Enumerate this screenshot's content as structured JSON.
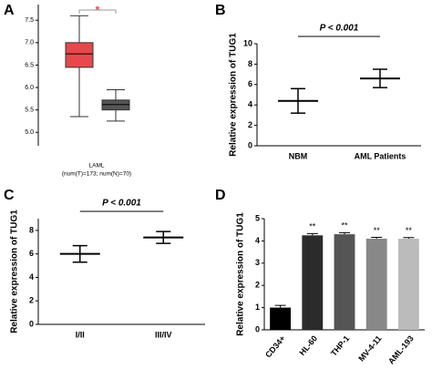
{
  "chart_data": [
    {
      "panel": "A",
      "type": "box",
      "ylim": [
        4.7,
        7.85
      ],
      "yticks": [
        {
          "value": 5,
          "label": "5.0"
        },
        {
          "value": 5.5,
          "label": "5.5"
        },
        {
          "value": 6,
          "label": "6.0"
        },
        {
          "value": 6.5,
          "label": "6.5"
        },
        {
          "value": 7,
          "label": "7.0"
        },
        {
          "value": 7.5,
          "label": "7.5"
        }
      ],
      "boxes": [
        {
          "color": "#e8474c",
          "median": 6.75,
          "q1": 6.45,
          "q3": 7.0,
          "low": 5.35,
          "high": 7.6
        },
        {
          "color": "#555555",
          "median": 5.62,
          "q1": 5.5,
          "q3": 5.72,
          "low": 5.25,
          "high": 5.95
        }
      ],
      "xlabel": [
        "LAML",
        "(num(T)=173; num(N)=70)"
      ],
      "annotation": "*",
      "annotation_color": "#e8474c"
    },
    {
      "panel": "B",
      "type": "dot",
      "ylim": [
        0,
        10
      ],
      "yticks": [
        0,
        2,
        4,
        6,
        8,
        10
      ],
      "ylabel": "Relative expression of TUG1",
      "categories": [
        "NBM",
        "AML Patients"
      ],
      "mean": [
        4.4,
        6.6
      ],
      "sd": [
        1.2,
        0.9
      ],
      "annotation": "P < 0.001"
    },
    {
      "panel": "C",
      "type": "dot",
      "ylim": [
        0,
        9
      ],
      "yticks": [
        0,
        2,
        4,
        6,
        8
      ],
      "ylabel": "Relative expression of TUG1",
      "categories": [
        "I/II",
        "III/IV"
      ],
      "mean": [
        6.0,
        7.4
      ],
      "sd": [
        0.7,
        0.5
      ],
      "annotation": "P < 0.001"
    },
    {
      "panel": "D",
      "type": "bar",
      "ylim": [
        0,
        5
      ],
      "yticks": [
        0,
        1,
        2,
        3,
        4,
        5
      ],
      "ylabel": "Relative expression of TUG1",
      "categories": [
        "CD34+",
        "HL-60",
        "THP-1",
        "MV-4-11",
        "AML-193"
      ],
      "values": [
        1.0,
        4.25,
        4.3,
        4.1,
        4.1
      ],
      "errors": [
        0.1,
        0.08,
        0.07,
        0.06,
        0.05
      ],
      "colors": [
        "#000000",
        "#2b2b2b",
        "#555555",
        "#888888",
        "#bbbbbb"
      ],
      "significance": [
        null,
        "**",
        "**",
        "**",
        "**"
      ]
    }
  ]
}
